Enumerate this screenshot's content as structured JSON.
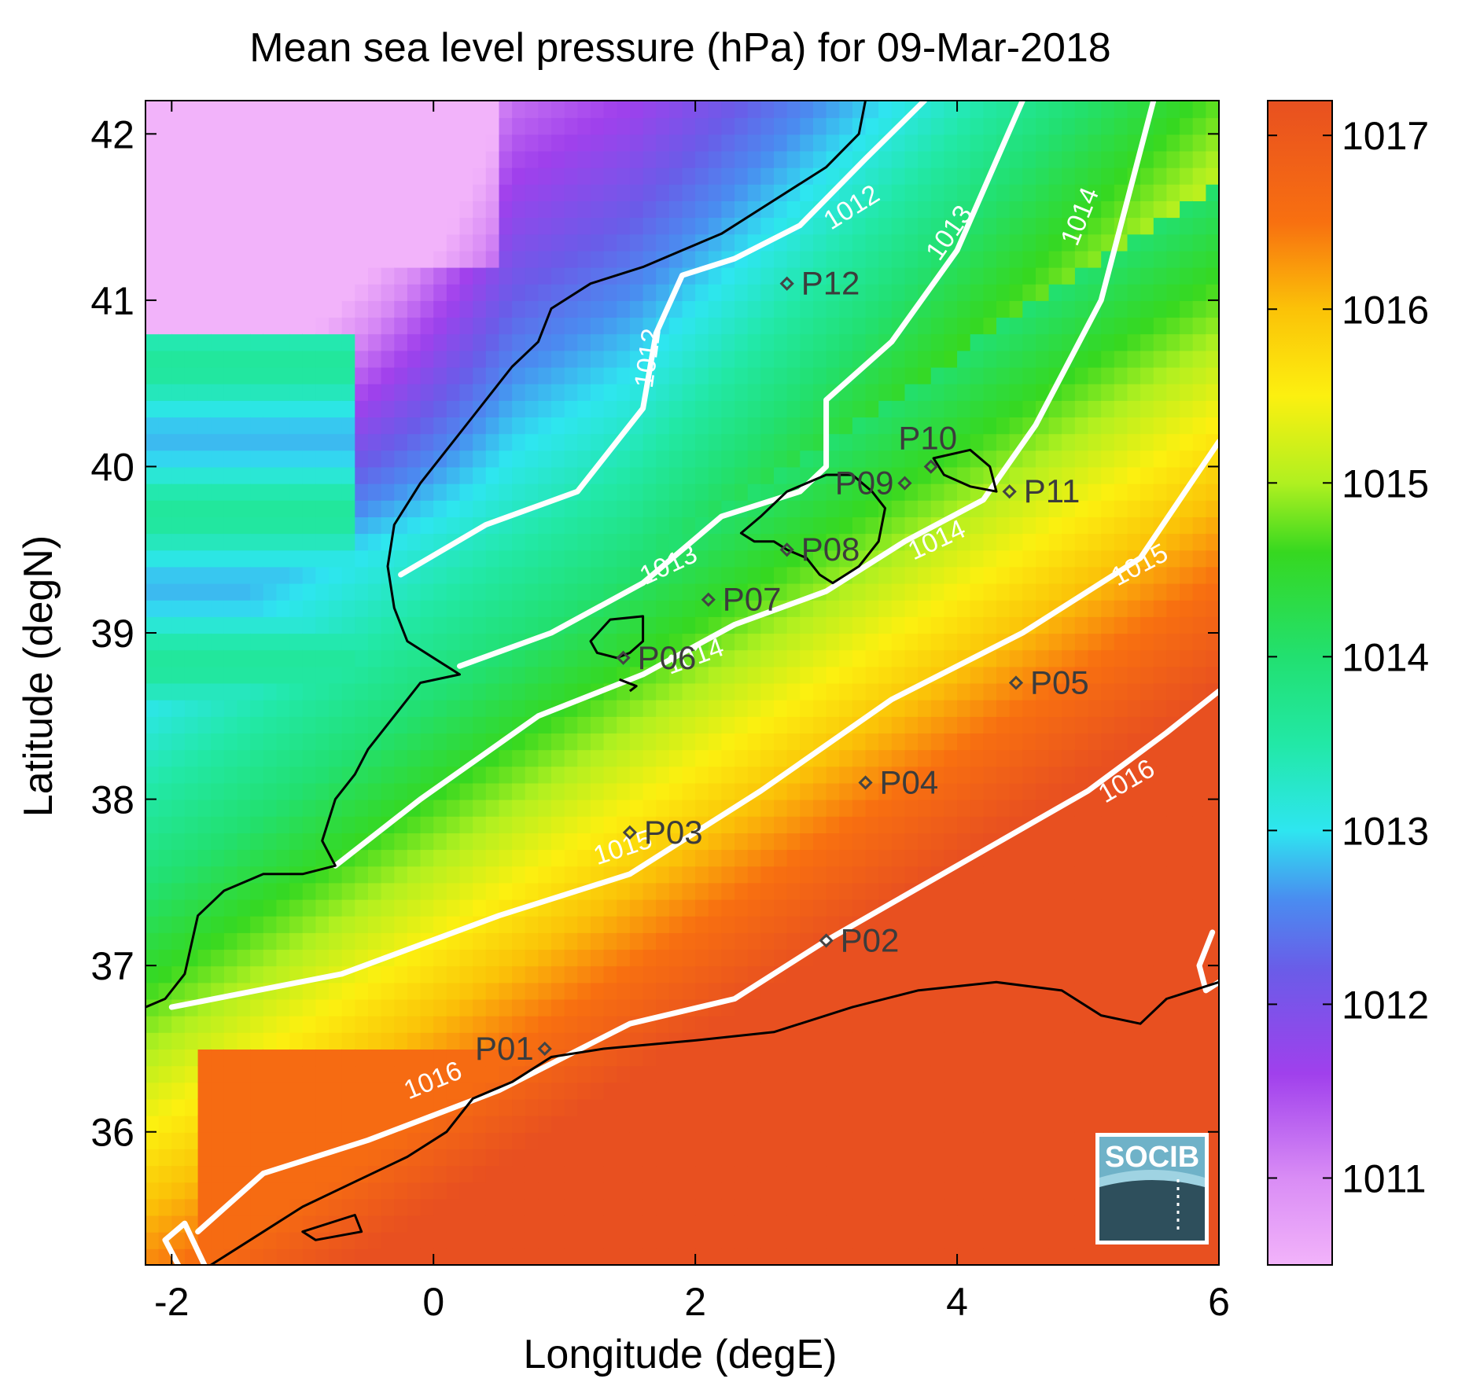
{
  "chart_data": {
    "type": "heatmap",
    "title": "Mean sea level pressure (hPa) for 09-Mar-2018",
    "xlabel": "Longitude (degE)",
    "ylabel": "Latitude (degN)",
    "xlim": [
      -2.2,
      6.0
    ],
    "ylim": [
      35.2,
      42.2
    ],
    "xticks": [
      -2,
      0,
      2,
      4,
      6
    ],
    "yticks": [
      36,
      37,
      38,
      39,
      40,
      41,
      42
    ],
    "colorbar": {
      "range": [
        1010.5,
        1017.2
      ],
      "ticks": [
        1011,
        1012,
        1013,
        1014,
        1015,
        1016,
        1017
      ],
      "stops": [
        {
          "v": 1010.5,
          "color": "#f2b3fa"
        },
        {
          "v": 1011.0,
          "color": "#d98cf5"
        },
        {
          "v": 1011.6,
          "color": "#a040ec"
        },
        {
          "v": 1012.2,
          "color": "#6a5ce8"
        },
        {
          "v": 1012.6,
          "color": "#4a8cf0"
        },
        {
          "v": 1013.0,
          "color": "#2ee6f0"
        },
        {
          "v": 1013.5,
          "color": "#22e8a6"
        },
        {
          "v": 1014.0,
          "color": "#22e070"
        },
        {
          "v": 1014.6,
          "color": "#36d820"
        },
        {
          "v": 1015.0,
          "color": "#b0f020"
        },
        {
          "v": 1015.5,
          "color": "#fcf010"
        },
        {
          "v": 1016.0,
          "color": "#fbc208"
        },
        {
          "v": 1016.5,
          "color": "#f87010"
        },
        {
          "v": 1017.2,
          "color": "#e85020"
        }
      ]
    },
    "contours": [
      {
        "level": "1012",
        "points": [
          [
            -0.25,
            39.35
          ],
          [
            0.4,
            39.65
          ],
          [
            1.1,
            39.85
          ],
          [
            1.6,
            40.35
          ],
          [
            1.7,
            40.8
          ],
          [
            1.9,
            41.15
          ],
          [
            2.3,
            41.25
          ],
          [
            2.8,
            41.45
          ],
          [
            3.3,
            41.85
          ],
          [
            3.75,
            42.2
          ]
        ]
      },
      {
        "level": "1013",
        "points": [
          [
            0.2,
            38.8
          ],
          [
            0.9,
            39.0
          ],
          [
            1.6,
            39.3
          ],
          [
            2.2,
            39.7
          ],
          [
            2.8,
            39.85
          ],
          [
            3.0,
            40.0
          ],
          [
            3.0,
            40.4
          ],
          [
            3.5,
            40.75
          ],
          [
            4.0,
            41.3
          ],
          [
            4.5,
            42.2
          ]
        ]
      },
      {
        "level": "1014",
        "points": [
          [
            -0.75,
            37.6
          ],
          [
            -0.1,
            38.0
          ],
          [
            0.8,
            38.5
          ],
          [
            1.6,
            38.75
          ],
          [
            2.3,
            39.05
          ],
          [
            3.0,
            39.25
          ],
          [
            3.6,
            39.55
          ],
          [
            4.2,
            39.8
          ],
          [
            4.6,
            40.25
          ],
          [
            5.1,
            41.0
          ],
          [
            5.5,
            42.2
          ]
        ]
      },
      {
        "level": "1015",
        "points": [
          [
            -2.0,
            36.75
          ],
          [
            -0.7,
            36.95
          ],
          [
            0.5,
            37.3
          ],
          [
            1.5,
            37.55
          ],
          [
            2.5,
            38.05
          ],
          [
            3.5,
            38.6
          ],
          [
            4.5,
            39.0
          ],
          [
            5.4,
            39.45
          ],
          [
            6.0,
            40.15
          ]
        ]
      },
      {
        "level": "1016",
        "points": [
          [
            -1.8,
            35.4
          ],
          [
            -1.3,
            35.75
          ],
          [
            -0.5,
            35.95
          ],
          [
            0.5,
            36.25
          ],
          [
            1.5,
            36.65
          ],
          [
            2.3,
            36.8
          ],
          [
            3.0,
            37.15
          ],
          [
            4.0,
            37.6
          ],
          [
            5.0,
            38.05
          ],
          [
            5.6,
            38.4
          ],
          [
            6.0,
            38.65
          ]
        ]
      },
      {
        "level": "",
        "points": [
          [
            -1.95,
            35.2
          ],
          [
            -2.05,
            35.35
          ],
          [
            -1.9,
            35.45
          ],
          [
            -1.75,
            35.2
          ]
        ]
      },
      {
        "level": "",
        "points": [
          [
            5.95,
            37.2
          ],
          [
            5.85,
            37.0
          ],
          [
            5.9,
            36.85
          ],
          [
            6.0,
            36.9
          ]
        ]
      }
    ],
    "contour_labels": [
      {
        "text": "1012",
        "lon": 3.2,
        "lat": 41.55,
        "angle": -32
      },
      {
        "text": "1013",
        "lon": 3.95,
        "lat": 41.4,
        "angle": -55
      },
      {
        "text": "1014",
        "lon": 4.95,
        "lat": 41.5,
        "angle": -68
      },
      {
        "text": "1012",
        "lon": 1.65,
        "lat": 40.65,
        "angle": -82
      },
      {
        "text": "1013",
        "lon": 1.8,
        "lat": 39.4,
        "angle": -25
      },
      {
        "text": "1014",
        "lon": 3.85,
        "lat": 39.55,
        "angle": -25
      },
      {
        "text": "1014",
        "lon": 2.0,
        "lat": 38.85,
        "angle": -20
      },
      {
        "text": "1015",
        "lon": 5.4,
        "lat": 39.4,
        "angle": -28
      },
      {
        "text": "1015",
        "lon": 1.45,
        "lat": 37.7,
        "angle": -18
      },
      {
        "text": "1016",
        "lon": 5.3,
        "lat": 38.1,
        "angle": -30
      },
      {
        "text": "1016",
        "lon": 0.0,
        "lat": 36.3,
        "angle": -22
      }
    ],
    "stations": [
      {
        "name": "P01",
        "lon": 0.85,
        "lat": 36.5,
        "label_side": "left"
      },
      {
        "name": "P02",
        "lon": 3.0,
        "lat": 37.15,
        "label_side": "right"
      },
      {
        "name": "P03",
        "lon": 1.5,
        "lat": 37.8,
        "label_side": "right"
      },
      {
        "name": "P04",
        "lon": 3.3,
        "lat": 38.1,
        "label_side": "right"
      },
      {
        "name": "P05",
        "lon": 4.45,
        "lat": 38.7,
        "label_side": "right"
      },
      {
        "name": "P06",
        "lon": 1.45,
        "lat": 38.85,
        "label_side": "right"
      },
      {
        "name": "P07",
        "lon": 2.1,
        "lat": 39.2,
        "label_side": "right"
      },
      {
        "name": "P08",
        "lon": 2.7,
        "lat": 39.5,
        "label_side": "right"
      },
      {
        "name": "P09",
        "lon": 3.6,
        "lat": 39.9,
        "label_side": "left"
      },
      {
        "name": "P10",
        "lon": 3.8,
        "lat": 40.0,
        "label_side": "above"
      },
      {
        "name": "P11",
        "lon": 4.4,
        "lat": 39.85,
        "label_side": "right"
      },
      {
        "name": "P12",
        "lon": 2.7,
        "lat": 41.1,
        "label_side": "right"
      }
    ],
    "coastlines": [
      {
        "name": "iberia",
        "points": [
          [
            -2.2,
            36.75
          ],
          [
            -2.05,
            36.8
          ],
          [
            -1.9,
            36.95
          ],
          [
            -1.8,
            37.3
          ],
          [
            -1.6,
            37.45
          ],
          [
            -1.3,
            37.55
          ],
          [
            -1.0,
            37.55
          ],
          [
            -0.75,
            37.6
          ],
          [
            -0.85,
            37.75
          ],
          [
            -0.75,
            38.0
          ],
          [
            -0.6,
            38.15
          ],
          [
            -0.5,
            38.3
          ],
          [
            -0.3,
            38.5
          ],
          [
            -0.1,
            38.7
          ],
          [
            0.2,
            38.75
          ],
          [
            0.0,
            38.85
          ],
          [
            -0.2,
            38.95
          ],
          [
            -0.3,
            39.15
          ],
          [
            -0.35,
            39.4
          ],
          [
            -0.3,
            39.65
          ],
          [
            -0.1,
            39.9
          ],
          [
            0.1,
            40.1
          ],
          [
            0.3,
            40.3
          ],
          [
            0.6,
            40.6
          ],
          [
            0.8,
            40.75
          ],
          [
            0.9,
            40.95
          ],
          [
            1.2,
            41.1
          ],
          [
            1.6,
            41.2
          ],
          [
            1.9,
            41.3
          ],
          [
            2.2,
            41.4
          ],
          [
            2.5,
            41.55
          ],
          [
            3.0,
            41.8
          ],
          [
            3.25,
            42.0
          ],
          [
            3.3,
            42.2
          ]
        ]
      },
      {
        "name": "africa",
        "points": [
          [
            -1.7,
            35.2
          ],
          [
            -1.4,
            35.35
          ],
          [
            -1.0,
            35.55
          ],
          [
            -0.6,
            35.7
          ],
          [
            -0.2,
            35.85
          ],
          [
            0.1,
            36.0
          ],
          [
            0.3,
            36.2
          ],
          [
            0.6,
            36.3
          ],
          [
            0.9,
            36.45
          ],
          [
            1.3,
            36.5
          ],
          [
            2.0,
            36.55
          ],
          [
            2.6,
            36.6
          ],
          [
            3.2,
            36.75
          ],
          [
            3.7,
            36.85
          ],
          [
            4.3,
            36.9
          ],
          [
            4.8,
            36.85
          ],
          [
            5.1,
            36.7
          ],
          [
            5.4,
            36.65
          ],
          [
            5.6,
            36.8
          ],
          [
            6.0,
            36.9
          ]
        ]
      },
      {
        "name": "mallorca",
        "points": [
          [
            2.35,
            39.6
          ],
          [
            2.5,
            39.7
          ],
          [
            2.7,
            39.85
          ],
          [
            3.0,
            39.95
          ],
          [
            3.2,
            39.95
          ],
          [
            3.35,
            39.85
          ],
          [
            3.45,
            39.75
          ],
          [
            3.4,
            39.55
          ],
          [
            3.25,
            39.4
          ],
          [
            3.05,
            39.3
          ],
          [
            2.95,
            39.35
          ],
          [
            2.85,
            39.45
          ],
          [
            2.7,
            39.5
          ],
          [
            2.6,
            39.55
          ],
          [
            2.45,
            39.55
          ]
        ]
      },
      {
        "name": "menorca",
        "points": [
          [
            3.82,
            40.05
          ],
          [
            4.1,
            40.1
          ],
          [
            4.25,
            40.0
          ],
          [
            4.3,
            39.85
          ],
          [
            4.1,
            39.88
          ],
          [
            3.9,
            39.95
          ]
        ]
      },
      {
        "name": "ibiza",
        "points": [
          [
            1.2,
            38.95
          ],
          [
            1.35,
            39.08
          ],
          [
            1.6,
            39.1
          ],
          [
            1.6,
            38.95
          ],
          [
            1.5,
            38.88
          ],
          [
            1.4,
            38.85
          ],
          [
            1.25,
            38.88
          ]
        ]
      },
      {
        "name": "formentera",
        "points": [
          [
            1.42,
            38.72
          ],
          [
            1.55,
            38.68
          ],
          [
            1.5,
            38.65
          ]
        ]
      },
      {
        "name": "alboran",
        "points": [
          [
            -1.0,
            35.4
          ],
          [
            -0.6,
            35.5
          ],
          [
            -0.55,
            35.4
          ],
          [
            -0.9,
            35.35
          ]
        ]
      }
    ],
    "logo": "SOCIB"
  }
}
